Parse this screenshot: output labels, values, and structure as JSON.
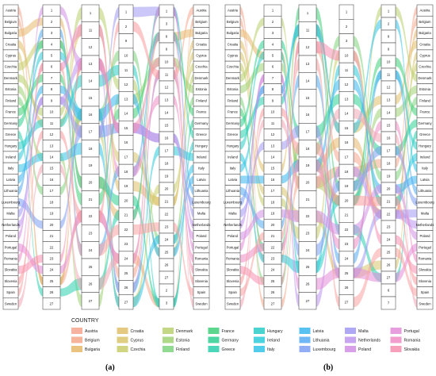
{
  "legend": {
    "title": "COUNTRY",
    "items": [
      {
        "label": "Austria",
        "color": "#f7a58f"
      },
      {
        "label": "Belgium",
        "color": "#f4a78a"
      },
      {
        "label": "Bulgaria",
        "color": "#e8b86b"
      },
      {
        "label": "Croatia",
        "color": "#e2c06a"
      },
      {
        "label": "Cyprus",
        "color": "#d9c56b"
      },
      {
        "label": "Czechia",
        "color": "#c9cd6a"
      },
      {
        "label": "Denmark",
        "color": "#b9d06e"
      },
      {
        "label": "Estonia",
        "color": "#9fd274"
      },
      {
        "label": "Finland",
        "color": "#7fd47e"
      },
      {
        "label": "France",
        "color": "#3fcf78"
      },
      {
        "label": "Germany",
        "color": "#2ecf92"
      },
      {
        "label": "Greece",
        "color": "#2ccfae"
      },
      {
        "label": "Hungary",
        "color": "#2ccdc7"
      },
      {
        "label": "Ireland",
        "color": "#2ecbd9"
      },
      {
        "label": "Italy",
        "color": "#33c3e8"
      },
      {
        "label": "Latvia",
        "color": "#3ab7ef"
      },
      {
        "label": "Lithuania",
        "color": "#56abf3"
      },
      {
        "label": "Luxembourg",
        "color": "#7c9ff3"
      },
      {
        "label": "Malta",
        "color": "#a199f2"
      },
      {
        "label": "Netherlands",
        "color": "#bd95ee"
      },
      {
        "label": "Poland",
        "color": "#d28fe6"
      },
      {
        "label": "Portugal",
        "color": "#e48cd8"
      },
      {
        "label": "Romania",
        "color": "#ef8cc4"
      },
      {
        "label": "Slovakia",
        "color": "#f58fb0"
      },
      {
        "label": "Slovenia",
        "color": "#f99a9d"
      },
      {
        "label": "Spain",
        "color": "#f7a2a0"
      },
      {
        "label": "Sweden",
        "color": "#f3a7b5"
      }
    ]
  },
  "panels": [
    {
      "label": "(a)",
      "left_axis": [
        "Austria",
        "Belgium",
        "Bulgaria",
        "Croatia",
        "Cyprus",
        "Czechia",
        "Denmark",
        "Estonia",
        "Finland",
        "France",
        "Germany",
        "Greece",
        "Hungary",
        "Ireland",
        "Italy",
        "Latvia",
        "Lithuania",
        "Luxembourg",
        "Malta",
        "Netherlands",
        "Poland",
        "Portugal",
        "Romania",
        "Slovakia",
        "Slovenia",
        "Spain",
        "Sweden"
      ],
      "rank_axes": [
        [
          "1",
          "2",
          "3",
          "4",
          "5",
          "6",
          "7",
          "8",
          "9",
          "10",
          "11",
          "12",
          "13",
          "14",
          "15",
          "16",
          "17",
          "18",
          "19",
          "20",
          "21",
          "22",
          "23",
          "24",
          "25",
          "26",
          "27"
        ],
        [
          "1",
          "11",
          "12",
          "13",
          "14",
          "15",
          "16",
          "17",
          "18",
          "19",
          "20",
          "21",
          "22",
          "23",
          "24",
          "25",
          "26",
          "27"
        ],
        [
          "1",
          "2",
          "9",
          "10",
          "11",
          "12",
          "13",
          "14",
          "15",
          "16",
          "17",
          "18",
          "19",
          "20",
          "21",
          "22",
          "23",
          "24",
          "25",
          "26",
          "27"
        ],
        [
          "1",
          "3",
          "8",
          "9",
          "10",
          "11",
          "12",
          "13",
          "14",
          "15",
          "16",
          "17",
          "18",
          "19",
          "20",
          "21",
          "22",
          "23",
          "24",
          "25",
          "26",
          "27",
          "2",
          "3"
        ]
      ],
      "right_axis": [
        "Austria",
        "Belgium",
        "Bulgaria",
        "Croatia",
        "Cyprus",
        "Czechia",
        "Denmark",
        "Estonia",
        "Finland",
        "France",
        "Germany",
        "Greece",
        "Hungary",
        "Ireland",
        "Italy",
        "Latvia",
        "Lithuania",
        "Luxembourg",
        "Malta",
        "Netherlands",
        "Poland",
        "Portugal",
        "Romania",
        "Slovakia",
        "Slovenia",
        "Spain",
        "Sweden"
      ]
    },
    {
      "label": "(b)",
      "left_axis": [
        "Austria",
        "Belgium",
        "Bulgaria",
        "Croatia",
        "Cyprus",
        "Czechia",
        "Denmark",
        "Estonia",
        "Finland",
        "France",
        "Germany",
        "Greece",
        "Hungary",
        "Ireland",
        "Italy",
        "Latvia",
        "Lithuania",
        "Luxembourg",
        "Malta",
        "Netherlands",
        "Poland",
        "Portugal",
        "Romania",
        "Slovakia",
        "Slovenia",
        "Spain",
        "Sweden"
      ],
      "rank_axes": [
        [
          "1",
          "2",
          "3",
          "4",
          "5",
          "6",
          "7",
          "8",
          "9",
          "10",
          "11",
          "12",
          "13",
          "14",
          "15",
          "16",
          "17",
          "18",
          "19",
          "20",
          "21",
          "22",
          "23",
          "24",
          "25",
          "26",
          "27"
        ],
        [
          "1",
          "11",
          "12",
          "13",
          "14",
          "15",
          "16",
          "17",
          "18",
          "19",
          "20",
          "21",
          "22",
          "23",
          "24",
          "25",
          "26",
          "27"
        ],
        [
          "1",
          "2",
          "3",
          "10",
          "11",
          "12",
          "13",
          "14",
          "15",
          "16",
          "17",
          "18",
          "19",
          "20",
          "21",
          "22",
          "23",
          "24",
          "25",
          "26",
          "27"
        ],
        [
          "1",
          "2",
          "8",
          "9",
          "10",
          "11",
          "12",
          "13",
          "14",
          "15",
          "16",
          "17",
          "18",
          "19",
          "20",
          "21",
          "22",
          "23",
          "24",
          "25",
          "26",
          "27",
          "6",
          "7"
        ]
      ],
      "right_axis": [
        "Austria",
        "Belgium",
        "Bulgaria",
        "Croatia",
        "Cyprus",
        "Czechia",
        "Denmark",
        "Estonia",
        "Finland",
        "France",
        "Germany",
        "Greece",
        "Hungary",
        "Ireland",
        "Italy",
        "Latvia",
        "Lithuania",
        "Luxembourg",
        "Malta",
        "Netherlands",
        "Poland",
        "Portugal",
        "Romania",
        "Slovakia",
        "Slovenia",
        "Spain",
        "Sweden"
      ]
    }
  ]
}
